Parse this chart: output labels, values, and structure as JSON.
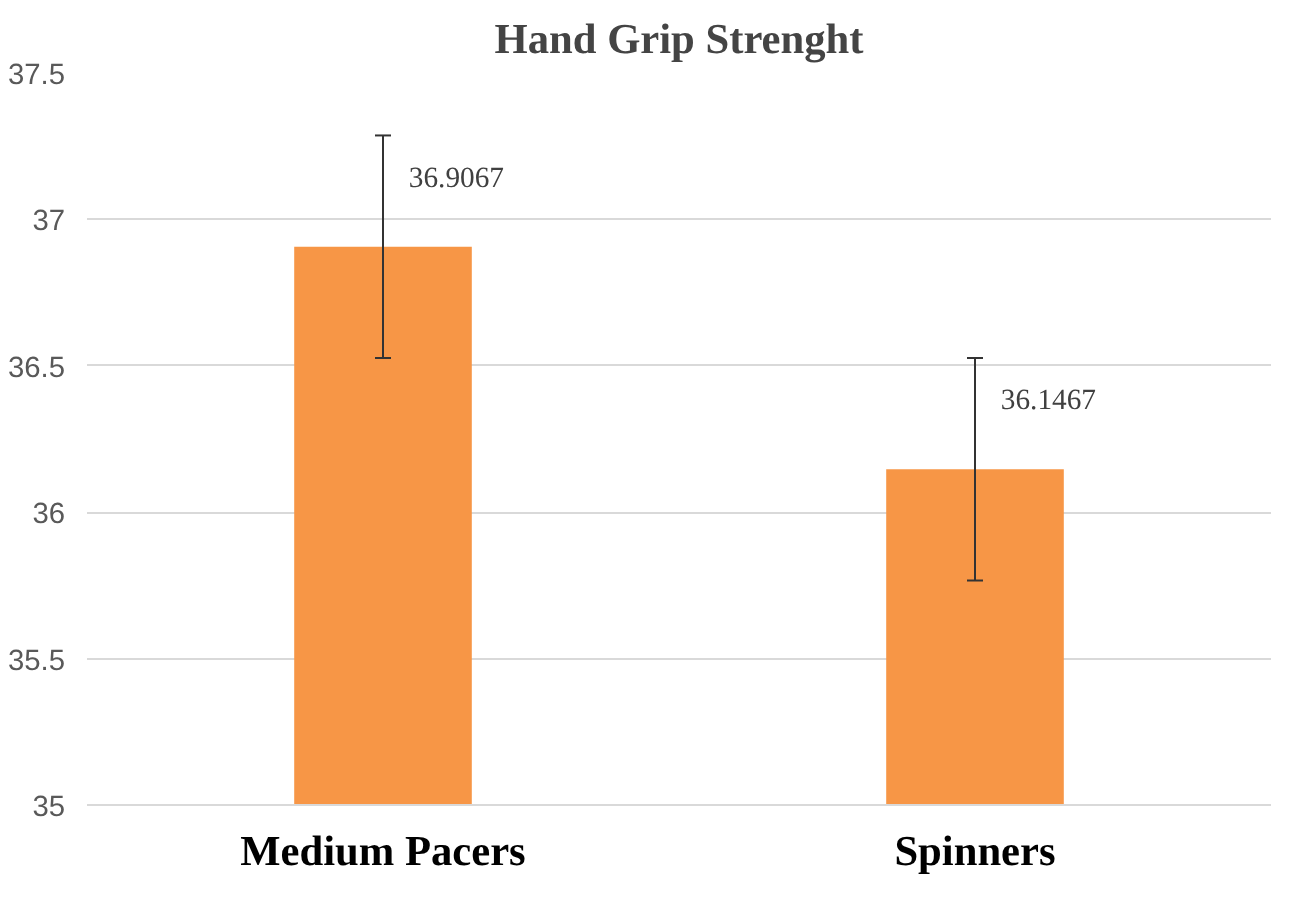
{
  "chart_data": {
    "type": "bar",
    "title": "Hand Grip Strenght",
    "categories": [
      "Medium Pacers",
      "Spinners"
    ],
    "values": [
      36.9067,
      36.1467
    ],
    "color": "#f79646",
    "errors": [
      0.38,
      0.38
    ],
    "ylim": [
      35,
      37.5
    ],
    "yticks": [
      35,
      35.5,
      36,
      36.5,
      37,
      37.5
    ],
    "grid": "y",
    "data_labels": true
  }
}
